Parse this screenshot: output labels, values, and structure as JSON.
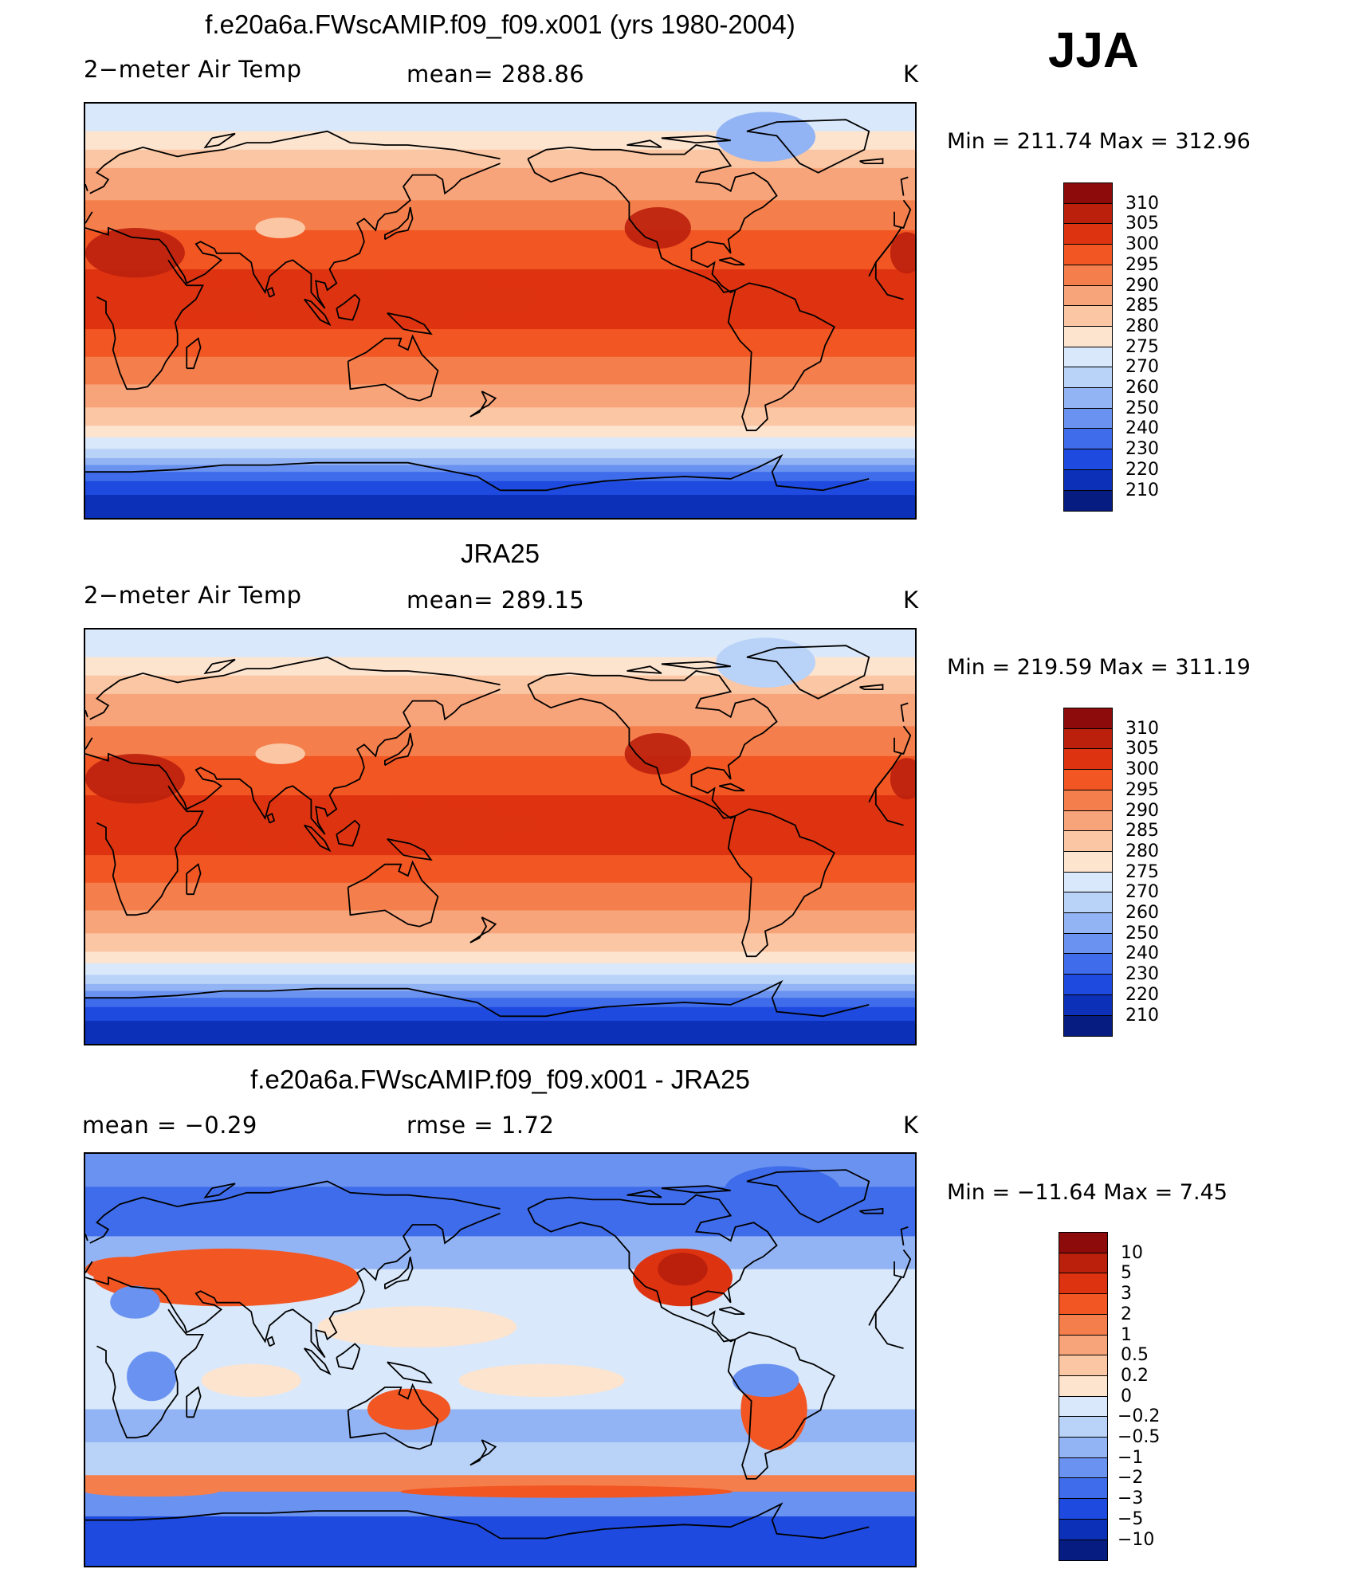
{
  "season": "JJA",
  "panels": [
    {
      "title": "f.e20a6a.FWscAMIP.f09_f09.x001 (yrs 1980-2004)",
      "left_label": "2−meter Air Temp",
      "center_label": "mean=  288.86",
      "units": "K",
      "minmax": "Min  =  211.74  Max  =  312.96",
      "field": "model"
    },
    {
      "title": "JRA25",
      "left_label": "2−meter Air Temp",
      "center_label": "mean=  289.15",
      "units": "K",
      "minmax": "Min  =  219.59  Max  =  311.19",
      "field": "obs"
    },
    {
      "title": "f.e20a6a.FWscAMIP.f09_f09.x001 - JRA25",
      "left_label": "mean  =     −0.29",
      "center_label": "rmse  =      1.72",
      "units": "K",
      "minmax": "Min  =  −11.64  Max  =      7.45",
      "field": "diff"
    }
  ],
  "colorbars": {
    "temperature": {
      "labels": [
        "310",
        "305",
        "300",
        "295",
        "290",
        "285",
        "280",
        "275",
        "270",
        "260",
        "250",
        "240",
        "230",
        "220",
        "210"
      ],
      "colors": [
        "#8e0b0b",
        "#bb200d",
        "#de3310",
        "#f25623",
        "#f47f4c",
        "#f8a47a",
        "#fbc6a3",
        "#fde4cf",
        "#d9e8fa",
        "#b9d2f7",
        "#93b4f4",
        "#6a92f0",
        "#3f6cea",
        "#1e4ae0",
        "#0c30b8",
        "#061c80"
      ]
    },
    "difference": {
      "labels": [
        "10",
        "5",
        "3",
        "2",
        "1",
        "0.5",
        "0.2",
        "0",
        "−0.2",
        "−0.5",
        "−1",
        "−2",
        "−3",
        "−5",
        "−10"
      ],
      "colors": [
        "#8e0b0b",
        "#bb200d",
        "#de3310",
        "#f25623",
        "#f47f4c",
        "#f8a47a",
        "#fbc6a3",
        "#fde4cf",
        "#d9e8fa",
        "#b9d2f7",
        "#93b4f4",
        "#6a92f0",
        "#3f6cea",
        "#1e4ae0",
        "#0c30b8",
        "#061c80"
      ]
    }
  }
}
